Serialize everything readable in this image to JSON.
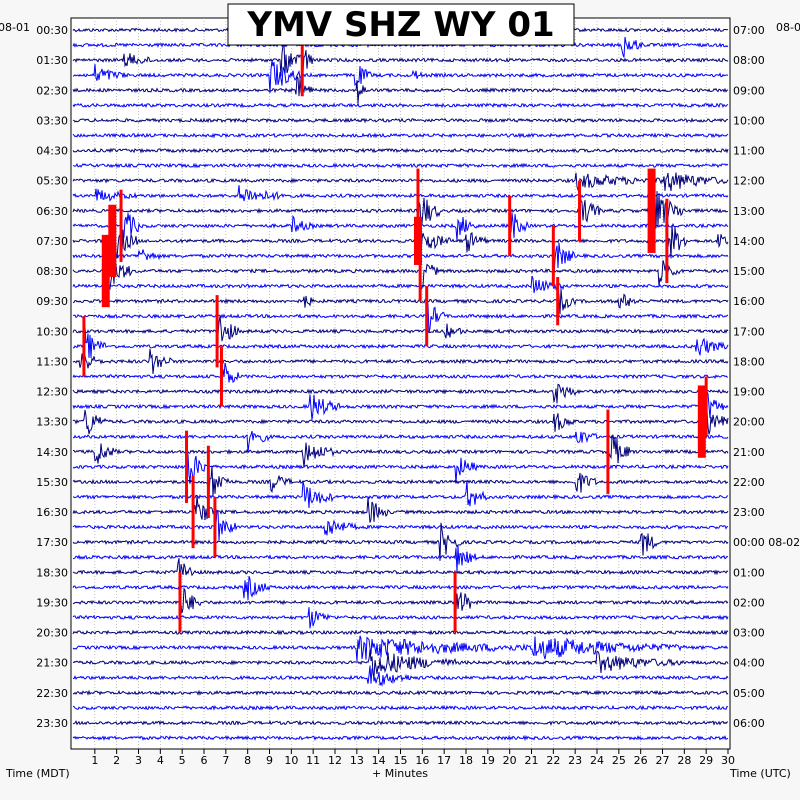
{
  "chart_data": {
    "type": "line",
    "title": "YMV SHZ WY 01",
    "left_date": "08-01",
    "right_date": "08-01",
    "right_date_rollover": "08-02",
    "xlabel": "+ Minutes",
    "left_axis_label": "Time (MDT)",
    "right_axis_label": "Time (UTC)",
    "xlim": [
      0,
      30
    ],
    "x_ticks": [
      "1",
      "2",
      "3",
      "4",
      "5",
      "6",
      "7",
      "8",
      "9",
      "10",
      "11",
      "12",
      "13",
      "14",
      "15",
      "16",
      "17",
      "18",
      "19",
      "20",
      "21",
      "22",
      "23",
      "24",
      "25",
      "26",
      "27",
      "28",
      "29",
      "30"
    ],
    "rows_per_hour": 2,
    "row_count": 48,
    "left_labels": [
      "00:30",
      "01:30",
      "02:30",
      "03:30",
      "04:30",
      "05:30",
      "06:30",
      "07:30",
      "08:30",
      "09:30",
      "10:30",
      "11:30",
      "12:30",
      "13:30",
      "14:30",
      "15:30",
      "16:30",
      "17:30",
      "18:30",
      "19:30",
      "20:30",
      "21:30",
      "22:30",
      "23:30"
    ],
    "right_labels": [
      "07:00",
      "08:00",
      "09:00",
      "10:00",
      "11:00",
      "12:00",
      "13:00",
      "14:00",
      "15:00",
      "16:00",
      "17:00",
      "18:00",
      "19:00",
      "20:00",
      "21:00",
      "22:00",
      "23:00",
      "00:00",
      "01:00",
      "02:00",
      "03:00",
      "04:00",
      "05:00",
      "06:00"
    ],
    "series_colors": [
      "#00007a",
      "#0000ff"
    ],
    "clip_color": "#ff0000",
    "grid": true,
    "events": [
      {
        "row": 0,
        "minute": 12.8,
        "amp": 1.2,
        "dur": 1.5
      },
      {
        "row": 1,
        "minute": 25.1,
        "amp": 2.0,
        "dur": 1.0
      },
      {
        "row": 2,
        "minute": 2.3,
        "amp": 1.0,
        "dur": 1.5
      },
      {
        "row": 2,
        "minute": 9.5,
        "amp": 2.5,
        "dur": 1.2
      },
      {
        "row": 2,
        "minute": 10.5,
        "amp": 3.0,
        "dur": 0.5,
        "clip": true
      },
      {
        "row": 3,
        "minute": 1.0,
        "amp": 1.2,
        "dur": 1.5
      },
      {
        "row": 3,
        "minute": 9.0,
        "amp": 2.5,
        "dur": 1.5
      },
      {
        "row": 3,
        "minute": 12.9,
        "amp": 2.0,
        "dur": 0.8
      },
      {
        "row": 3,
        "minute": 15.5,
        "amp": 1.0,
        "dur": 0.5
      },
      {
        "row": 4,
        "minute": 10.2,
        "amp": 2.0,
        "dur": 0.8
      },
      {
        "row": 4,
        "minute": 13.0,
        "amp": 1.8,
        "dur": 0.5
      },
      {
        "row": 10,
        "minute": 23.0,
        "amp": 1.0,
        "dur": 4.0
      },
      {
        "row": 10,
        "minute": 27.0,
        "amp": 1.5,
        "dur": 3.0
      },
      {
        "row": 11,
        "minute": 7.5,
        "amp": 1.2,
        "dur": 2.5
      },
      {
        "row": 11,
        "minute": 1.0,
        "amp": 0.8,
        "dur": 2.0
      },
      {
        "row": 12,
        "minute": 15.8,
        "amp": 3.5,
        "dur": 1.0,
        "clip": true
      },
      {
        "row": 12,
        "minute": 26.5,
        "amp": 3.5,
        "dur": 1.5,
        "clip": true
      },
      {
        "row": 12,
        "minute": 23.2,
        "amp": 2.5,
        "dur": 1.0,
        "clip": true
      },
      {
        "row": 13,
        "minute": 2.2,
        "amp": 3.0,
        "dur": 1.0,
        "clip": true
      },
      {
        "row": 13,
        "minute": 10.0,
        "amp": 1.2,
        "dur": 1.0
      },
      {
        "row": 13,
        "minute": 17.5,
        "amp": 2.0,
        "dur": 1.0
      },
      {
        "row": 13,
        "minute": 20.0,
        "amp": 2.5,
        "dur": 0.8,
        "clip": true
      },
      {
        "row": 14,
        "minute": 1.8,
        "amp": 3.0,
        "dur": 1.2,
        "clip": true
      },
      {
        "row": 14,
        "minute": 15.8,
        "amp": 2.0,
        "dur": 1.5,
        "clip": true
      },
      {
        "row": 14,
        "minute": 18.0,
        "amp": 1.5,
        "dur": 1.0
      },
      {
        "row": 14,
        "minute": 27.2,
        "amp": 3.5,
        "dur": 1.0,
        "clip": true
      },
      {
        "row": 14,
        "minute": 29.5,
        "amp": 2.5,
        "dur": 0.5
      },
      {
        "row": 15,
        "minute": 22.0,
        "amp": 2.5,
        "dur": 1.0,
        "clip": true
      },
      {
        "row": 15,
        "minute": 3.0,
        "amp": 1.2,
        "dur": 1.0
      },
      {
        "row": 16,
        "minute": 1.5,
        "amp": 3.0,
        "dur": 1.2,
        "clip": true
      },
      {
        "row": 16,
        "minute": 15.9,
        "amp": 2.5,
        "dur": 0.8,
        "clip": true
      },
      {
        "row": 16,
        "minute": 26.8,
        "amp": 2.0,
        "dur": 1.0
      },
      {
        "row": 17,
        "minute": 21.0,
        "amp": 1.2,
        "dur": 1.5
      },
      {
        "row": 18,
        "minute": 10.5,
        "amp": 1.5,
        "dur": 0.5
      },
      {
        "row": 18,
        "minute": 22.2,
        "amp": 2.0,
        "dur": 0.8,
        "clip": true
      },
      {
        "row": 18,
        "minute": 25.0,
        "amp": 1.2,
        "dur": 1.0
      },
      {
        "row": 19,
        "minute": 16.2,
        "amp": 2.5,
        "dur": 0.8,
        "clip": true
      },
      {
        "row": 20,
        "minute": 6.6,
        "amp": 3.0,
        "dur": 1.0,
        "clip": true
      },
      {
        "row": 20,
        "minute": 17.0,
        "amp": 1.0,
        "dur": 1.0
      },
      {
        "row": 21,
        "minute": 0.5,
        "amp": 2.5,
        "dur": 1.0,
        "clip": true
      },
      {
        "row": 21,
        "minute": 28.5,
        "amp": 1.5,
        "dur": 1.5
      },
      {
        "row": 22,
        "minute": 0.3,
        "amp": 2.0,
        "dur": 1.0
      },
      {
        "row": 22,
        "minute": 3.5,
        "amp": 2.0,
        "dur": 1.0
      },
      {
        "row": 23,
        "minute": 6.8,
        "amp": 2.5,
        "dur": 0.8,
        "clip": true
      },
      {
        "row": 24,
        "minute": 22.0,
        "amp": 2.0,
        "dur": 1.0
      },
      {
        "row": 25,
        "minute": 10.8,
        "amp": 2.0,
        "dur": 1.5
      },
      {
        "row": 25,
        "minute": 29.0,
        "amp": 2.5,
        "dur": 0.8,
        "clip": true
      },
      {
        "row": 26,
        "minute": 0.5,
        "amp": 2.5,
        "dur": 1.0
      },
      {
        "row": 26,
        "minute": 22.0,
        "amp": 1.5,
        "dur": 1.0
      },
      {
        "row": 26,
        "minute": 28.8,
        "amp": 3.0,
        "dur": 1.2,
        "clip": true
      },
      {
        "row": 27,
        "minute": 8.0,
        "amp": 2.0,
        "dur": 1.0
      },
      {
        "row": 27,
        "minute": 23.0,
        "amp": 1.5,
        "dur": 1.0
      },
      {
        "row": 28,
        "minute": 1.0,
        "amp": 2.0,
        "dur": 1.0
      },
      {
        "row": 28,
        "minute": 10.5,
        "amp": 2.0,
        "dur": 1.5
      },
      {
        "row": 28,
        "minute": 24.5,
        "amp": 3.5,
        "dur": 1.0,
        "clip": true
      },
      {
        "row": 29,
        "minute": 5.2,
        "amp": 3.0,
        "dur": 1.0,
        "clip": true
      },
      {
        "row": 29,
        "minute": 17.5,
        "amp": 2.0,
        "dur": 1.0
      },
      {
        "row": 30,
        "minute": 6.2,
        "amp": 3.0,
        "dur": 1.0,
        "clip": true
      },
      {
        "row": 30,
        "minute": 9.0,
        "amp": 1.5,
        "dur": 1.0
      },
      {
        "row": 30,
        "minute": 23.0,
        "amp": 2.0,
        "dur": 1.0
      },
      {
        "row": 31,
        "minute": 10.5,
        "amp": 2.0,
        "dur": 1.5
      },
      {
        "row": 31,
        "minute": 18.0,
        "amp": 2.0,
        "dur": 1.0
      },
      {
        "row": 32,
        "minute": 5.5,
        "amp": 3.0,
        "dur": 1.0,
        "clip": true
      },
      {
        "row": 32,
        "minute": 13.5,
        "amp": 2.0,
        "dur": 1.0
      },
      {
        "row": 33,
        "minute": 6.5,
        "amp": 2.5,
        "dur": 1.0,
        "clip": true
      },
      {
        "row": 33,
        "minute": 11.5,
        "amp": 1.5,
        "dur": 1.5
      },
      {
        "row": 34,
        "minute": 16.8,
        "amp": 2.5,
        "dur": 1.0
      },
      {
        "row": 34,
        "minute": 26.0,
        "amp": 2.5,
        "dur": 0.8
      },
      {
        "row": 35,
        "minute": 17.5,
        "amp": 2.0,
        "dur": 1.0
      },
      {
        "row": 36,
        "minute": 4.8,
        "amp": 2.5,
        "dur": 0.8
      },
      {
        "row": 37,
        "minute": 7.8,
        "amp": 2.0,
        "dur": 1.2
      },
      {
        "row": 38,
        "minute": 4.9,
        "amp": 2.5,
        "dur": 1.0,
        "clip": true
      },
      {
        "row": 38,
        "minute": 17.5,
        "amp": 2.5,
        "dur": 1.0,
        "clip": true
      },
      {
        "row": 39,
        "minute": 10.8,
        "amp": 1.5,
        "dur": 1.0
      },
      {
        "row": 41,
        "minute": 13.0,
        "amp": 1.5,
        "dur": 8.0
      },
      {
        "row": 41,
        "minute": 21.0,
        "amp": 1.5,
        "dur": 7.0
      },
      {
        "row": 42,
        "minute": 13.5,
        "amp": 2.0,
        "dur": 4.0
      },
      {
        "row": 42,
        "minute": 24.0,
        "amp": 1.2,
        "dur": 4.0
      },
      {
        "row": 43,
        "minute": 13.5,
        "amp": 1.5,
        "dur": 2.0
      }
    ]
  }
}
